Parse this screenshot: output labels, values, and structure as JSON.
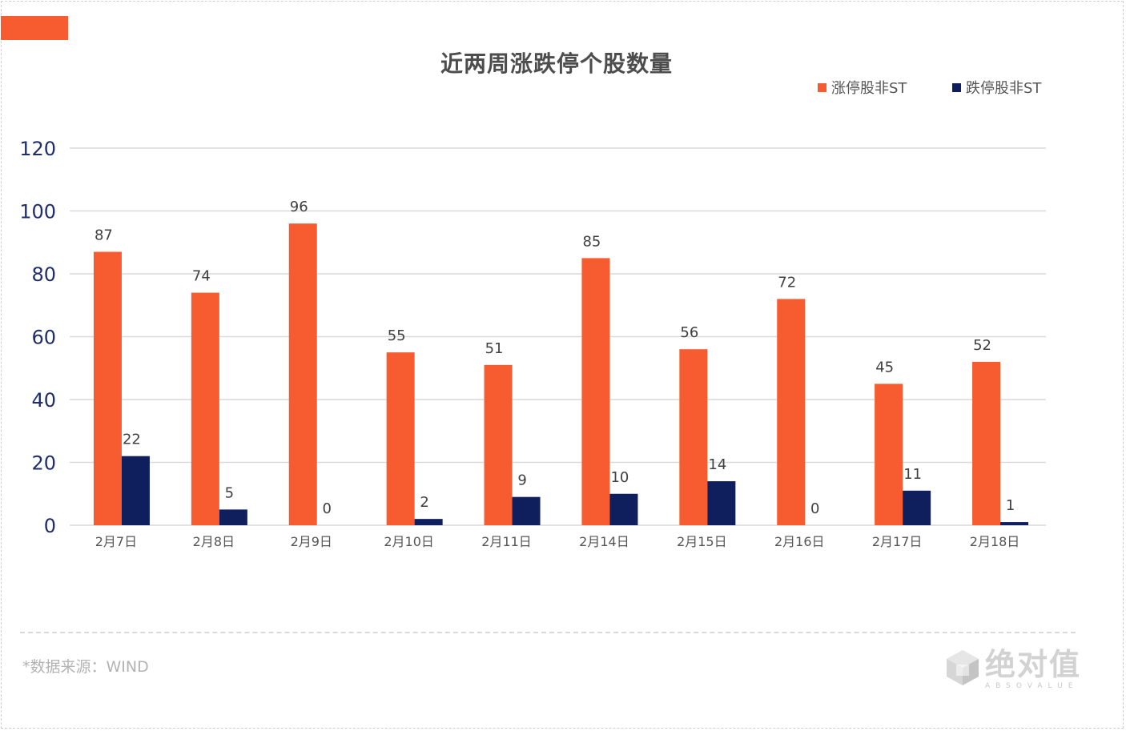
{
  "colors": {
    "accent": "#F75C30",
    "series_up": "#F75C30",
    "series_down": "#0F1F5E",
    "grid": "#D9D9D9",
    "ytick": "#1F2D6B",
    "label": "#404040"
  },
  "source": "*数据来源：WIND",
  "logo": {
    "text_cn": "绝对值",
    "text_en": "ABSOVALUE"
  },
  "chart_data": {
    "type": "bar",
    "title": "近两周涨跌停个股数量",
    "categories": [
      "2月7日",
      "2月8日",
      "2月9日",
      "2月10日",
      "2月11日",
      "2月14日",
      "2月15日",
      "2月16日",
      "2月17日",
      "2月18日"
    ],
    "series": [
      {
        "name": "涨停股非ST",
        "values": [
          87,
          74,
          96,
          55,
          51,
          85,
          56,
          72,
          45,
          52
        ]
      },
      {
        "name": "跌停股非ST",
        "values": [
          22,
          5,
          0,
          2,
          9,
          10,
          14,
          0,
          11,
          1
        ]
      }
    ],
    "ylim": [
      0,
      120
    ],
    "yticks": [
      0,
      20,
      40,
      60,
      80,
      100,
      120
    ],
    "xlabel": "",
    "ylabel": "",
    "grid": true,
    "legend_position": "top-right",
    "data_labels": true
  }
}
